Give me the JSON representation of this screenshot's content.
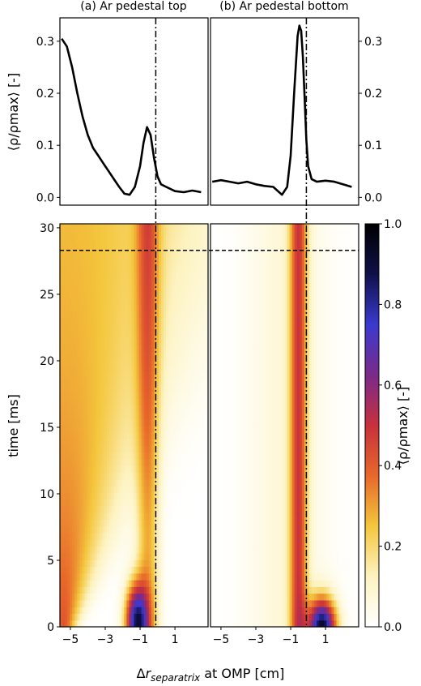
{
  "chart_data": {
    "type": "line+heatmap",
    "panels": [
      {
        "title": "(a) Ar pedestal top",
        "profile": {
          "x": [
            -5.5,
            -5.2,
            -4.9,
            -4.6,
            -4.3,
            -4.0,
            -3.7,
            -3.4,
            -3.1,
            -2.8,
            -2.5,
            -2.2,
            -1.9,
            -1.6,
            -1.3,
            -1.0,
            -0.8,
            -0.6,
            -0.4,
            -0.2,
            0.0,
            0.2,
            0.5,
            1.0,
            1.5,
            2.0,
            2.5
          ],
          "y": [
            0.305,
            0.29,
            0.25,
            0.2,
            0.155,
            0.12,
            0.095,
            0.08,
            0.065,
            0.05,
            0.035,
            0.02,
            0.007,
            0.005,
            0.02,
            0.06,
            0.105,
            0.135,
            0.12,
            0.075,
            0.04,
            0.025,
            0.02,
            0.012,
            0.01,
            0.013,
            0.01
          ]
        },
        "heatmap": {
          "components": [
            {
              "type": "edge",
              "x0": -5.4,
              "s_start": 0.5,
              "grow": 0.18,
              "amp": 0.42,
              "decay": 12
            },
            {
              "type": "separatrix",
              "x0": -0.55,
              "s": 0.45,
              "amp": 0.28
            },
            {
              "type": "peak",
              "x0": -1.2,
              "t0": 0.4,
              "sx": 0.45,
              "st": 2.0,
              "amp": 0.8
            }
          ]
        }
      },
      {
        "title": "(b) Ar pedestal bottom",
        "profile": {
          "x": [
            -5.5,
            -5.0,
            -4.5,
            -4.0,
            -3.5,
            -3.0,
            -2.5,
            -2.0,
            -1.5,
            -1.2,
            -1.0,
            -0.8,
            -0.6,
            -0.5,
            -0.4,
            -0.3,
            -0.2,
            -0.1,
            0.0,
            0.2,
            0.5,
            1.0,
            1.5,
            2.0,
            2.5
          ],
          "y": [
            0.03,
            0.033,
            0.03,
            0.027,
            0.03,
            0.025,
            0.022,
            0.02,
            0.005,
            0.02,
            0.08,
            0.2,
            0.31,
            0.33,
            0.32,
            0.27,
            0.19,
            0.11,
            0.06,
            0.035,
            0.03,
            0.032,
            0.03,
            0.025,
            0.02
          ]
        },
        "heatmap": {
          "components": [
            {
              "type": "separatrix",
              "x0": -0.55,
              "s": 0.35,
              "amp": 0.42
            },
            {
              "type": "diffuse",
              "x0": -1.2,
              "s": 1.6,
              "amp": 0.08
            },
            {
              "type": "peak",
              "x0": 0.8,
              "t0": 0.0,
              "sx": 0.55,
              "st": 1.5,
              "amp": 0.9
            }
          ]
        }
      }
    ],
    "x_axis": {
      "label_prefix": "Δ",
      "label_main": "r",
      "label_sub": "separatrix",
      "label_suffix": " at OMP [cm]",
      "ticks": [
        -5,
        -3,
        -1,
        1
      ],
      "lim": [
        -5.6,
        2.9
      ]
    },
    "profile_y_axis": {
      "label": "⟨ρ/ρmax⟩ [-]",
      "ticks": [
        0.0,
        0.1,
        0.2,
        0.3
      ],
      "tick_labels": [
        "0.0",
        "0.1",
        "0.2",
        "0.3"
      ],
      "lim": [
        -0.015,
        0.345
      ]
    },
    "time_axis": {
      "label": "time [ms]",
      "ticks": [
        0,
        5,
        10,
        15,
        20,
        25,
        30
      ],
      "lim": [
        0,
        30.3
      ]
    },
    "colorbar": {
      "label": "⟨ρ/ρmax⟩ [-]",
      "ticks": [
        0.0,
        0.2,
        0.4,
        0.6,
        0.8,
        1.0
      ],
      "tick_labels": [
        "0.0",
        "0.2",
        "0.4",
        "0.6",
        "0.8",
        "1.0"
      ],
      "colormap": "CMRmap_r",
      "stops": [
        "#ffffff",
        "#fdf3c0",
        "#f4c63c",
        "#e8682a",
        "#c8303c",
        "#7a2a8a",
        "#3a3ad0",
        "#10104a",
        "#000000"
      ]
    },
    "separatrix_x": -0.1,
    "time_marker": 28.3
  }
}
